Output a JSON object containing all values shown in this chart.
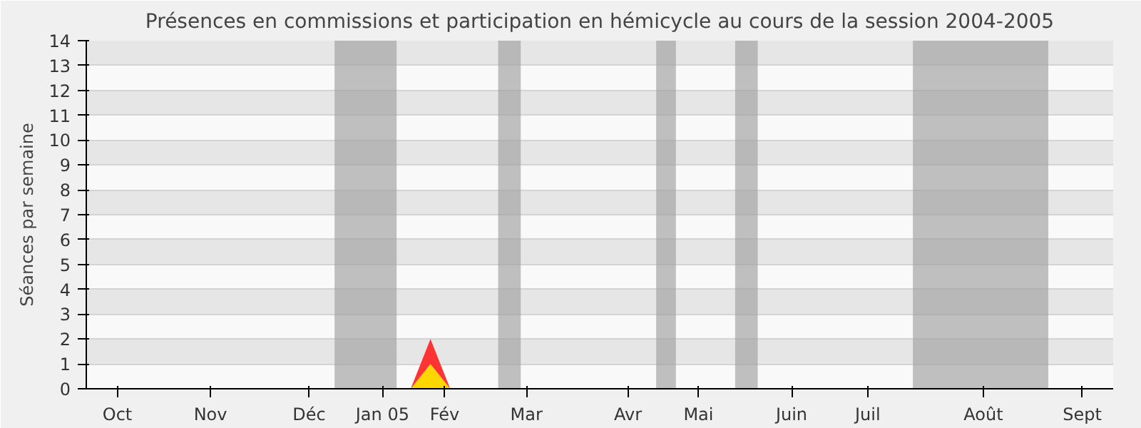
{
  "chart_data": {
    "type": "area",
    "title": "Présences en commissions et participation en hémicycle au cours de la session 2004-2005",
    "ylabel": "Séances par semaine",
    "x": [
      "2004-10-04",
      "2004-10-11",
      "2004-10-18",
      "2004-10-25",
      "2004-11-01",
      "2004-11-08",
      "2004-11-15",
      "2004-11-22",
      "2004-11-29",
      "2004-12-06",
      "2004-12-13",
      "2004-12-20",
      "2004-12-27",
      "2005-01-03",
      "2005-01-10",
      "2005-01-17",
      "2005-01-24",
      "2005-01-31",
      "2005-02-07",
      "2005-02-14",
      "2005-02-21",
      "2005-02-28",
      "2005-03-07",
      "2005-03-14",
      "2005-03-21",
      "2005-03-28",
      "2005-04-04",
      "2005-04-11",
      "2005-04-18",
      "2005-04-25",
      "2005-05-02",
      "2005-05-09",
      "2005-05-16",
      "2005-05-23",
      "2005-05-30",
      "2005-06-06",
      "2005-06-13",
      "2005-06-20",
      "2005-06-27",
      "2005-07-04",
      "2005-07-11",
      "2005-07-18",
      "2005-07-25",
      "2005-08-01",
      "2005-08-08",
      "2005-08-15",
      "2005-08-22",
      "2005-08-29",
      "2005-09-05",
      "2005-09-12",
      "2005-09-19",
      "2005-09-26"
    ],
    "stacked": true,
    "series": [
      {
        "color": "#ffd700",
        "values": [
          0,
          0,
          0,
          0,
          0,
          0,
          0,
          0,
          0,
          0,
          0,
          0,
          0,
          0,
          0,
          0,
          0,
          1,
          0,
          0,
          0,
          0,
          0,
          0,
          0,
          0,
          0,
          0,
          0,
          0,
          0,
          0,
          0,
          0,
          0,
          0,
          0,
          0,
          0,
          0,
          0,
          0,
          0,
          0,
          0,
          0,
          0,
          0,
          0,
          0,
          0,
          0
        ]
      },
      {
        "color": "#ff3333",
        "values": [
          0,
          0,
          0,
          0,
          0,
          0,
          0,
          0,
          0,
          0,
          0,
          0,
          0,
          0,
          0,
          0,
          0,
          1,
          0,
          0,
          0,
          0,
          0,
          0,
          0,
          0,
          0,
          0,
          0,
          0,
          0,
          0,
          0,
          0,
          0,
          0,
          0,
          0,
          0,
          0,
          0,
          0,
          0,
          0,
          0,
          0,
          0,
          0,
          0,
          0,
          0,
          0
        ]
      }
    ],
    "xlim": [
      "2004-10-01",
      "2005-09-30"
    ],
    "xticks": [
      {
        "value": "2004-10-12",
        "label": "Oct"
      },
      {
        "value": "2004-11-14",
        "label": "Nov"
      },
      {
        "value": "2004-12-19",
        "label": "Déc"
      },
      {
        "value": "2005-01-14",
        "label": "Jan 05"
      },
      {
        "value": "2005-02-05",
        "label": "Fév"
      },
      {
        "value": "2005-03-06",
        "label": "Mar"
      },
      {
        "value": "2005-04-11",
        "label": "Avr"
      },
      {
        "value": "2005-05-06",
        "label": "Mai"
      },
      {
        "value": "2005-06-08",
        "label": "Juin"
      },
      {
        "value": "2005-07-05",
        "label": "Juil"
      },
      {
        "value": "2005-08-15",
        "label": "Août"
      },
      {
        "value": "2005-09-19",
        "label": "Sept"
      }
    ],
    "ylim": [
      0,
      14
    ],
    "yticks": [
      0,
      1,
      2,
      3,
      4,
      5,
      6,
      7,
      8,
      9,
      10,
      11,
      12,
      13,
      14
    ],
    "grid": "y",
    "bands": [
      {
        "axis": "x",
        "from": "2004-12-28",
        "to": "2005-01-19",
        "color": "#a0a0a0"
      },
      {
        "axis": "x",
        "from": "2005-02-24",
        "to": "2005-03-04",
        "color": "#a0a0a0"
      },
      {
        "axis": "x",
        "from": "2005-04-21",
        "to": "2005-04-28",
        "color": "#a0a0a0"
      },
      {
        "axis": "x",
        "from": "2005-05-19",
        "to": "2005-05-27",
        "color": "#a0a0a0"
      },
      {
        "axis": "x",
        "from": "2005-07-21",
        "to": "2005-09-07",
        "color": "#a0a0a0"
      }
    ]
  }
}
